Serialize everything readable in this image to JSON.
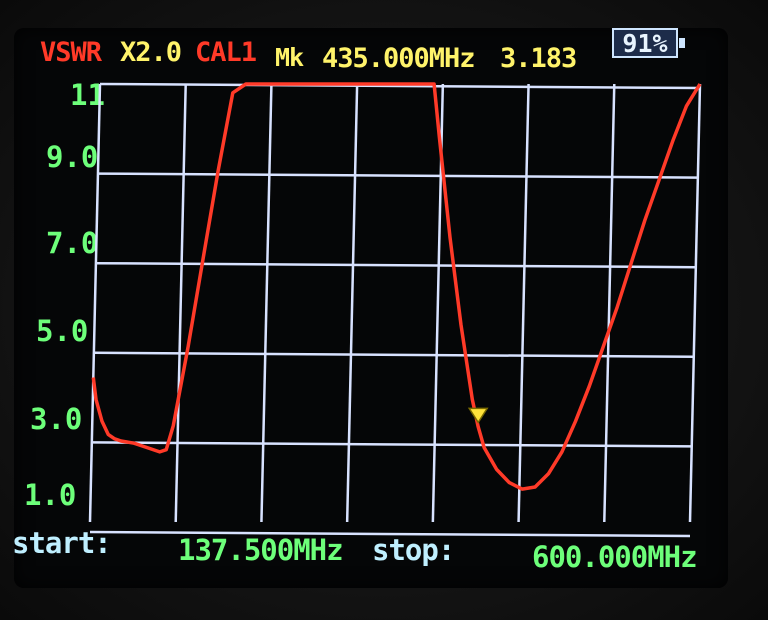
{
  "header": {
    "mode": "VSWR",
    "scale": "X2.0",
    "cal": "CAL1",
    "marker_label": "Mk",
    "marker_freq": "435.000MHz",
    "marker_value": "3.183"
  },
  "battery": {
    "text": "91%",
    "level": 0.91
  },
  "footer": {
    "start_label": "start:",
    "start_value": "137.500MHz",
    "stop_label": "stop:",
    "stop_value": "600.000MHz"
  },
  "colors": {
    "trace": "#ff3a28",
    "grid": "#d8e2ff",
    "marker": "#ffe23a",
    "axis_labels": "#6dff7a"
  },
  "chart_data": {
    "type": "line",
    "y_ticks": [
      "11",
      "9.0",
      "7.0",
      "5.0",
      "3.0",
      "1.0"
    ],
    "xlim": [
      137.5,
      600.0
    ],
    "ylim": [
      1.0,
      11.0
    ],
    "marker": {
      "x": 435.0,
      "y": 3.183
    },
    "series": [
      {
        "x": [
          137.5,
          140.0,
          145.0,
          150.0,
          155.0,
          160.0,
          170.0,
          180.0,
          190.0,
          195.0,
          200.0,
          210.0,
          220.0,
          230.0,
          240.0,
          250.0,
          260.0,
          270.0,
          280.0,
          290.0,
          300.0,
          310.0,
          320.0,
          330.0,
          340.0,
          350.0,
          360.0,
          370.0,
          380.0,
          390.0,
          395.0,
          400.0,
          410.0,
          420.0,
          430.0,
          435.0,
          440.0,
          450.0,
          460.0,
          470.0,
          480.0,
          490.0,
          500.0,
          510.0,
          520.0,
          530.0,
          540.0,
          550.0,
          560.0,
          570.0,
          580.0,
          590.0,
          600.0
        ],
        "values": [
          4.3,
          3.8,
          3.3,
          3.0,
          2.9,
          2.85,
          2.8,
          2.7,
          2.6,
          2.65,
          3.2,
          5.0,
          7.0,
          9.0,
          10.8,
          11.0,
          11.0,
          11.0,
          11.0,
          11.0,
          11.0,
          11.0,
          11.0,
          11.0,
          11.0,
          11.0,
          11.0,
          11.0,
          11.0,
          11.0,
          11.0,
          9.8,
          7.5,
          5.5,
          3.8,
          3.18,
          2.7,
          2.2,
          1.9,
          1.75,
          1.8,
          2.1,
          2.6,
          3.3,
          4.1,
          5.0,
          5.9,
          6.9,
          7.9,
          8.8,
          9.7,
          10.5,
          11.0
        ]
      }
    ]
  }
}
